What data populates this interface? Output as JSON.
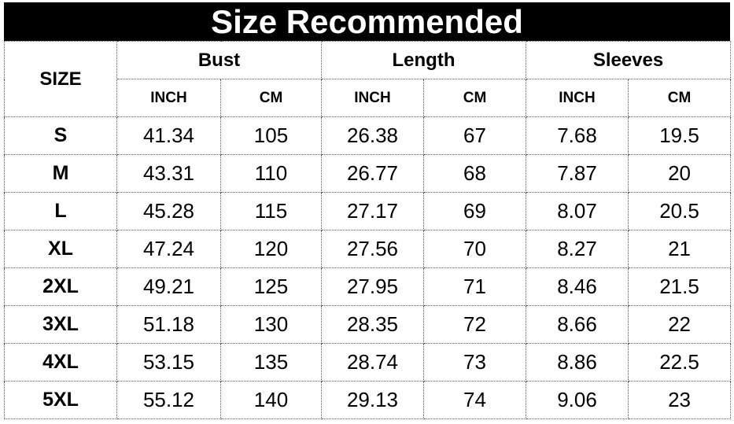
{
  "title": "Size Recommended",
  "table": {
    "size_header": "SIZE",
    "groups": [
      {
        "name": "Bust",
        "units": [
          "INCH",
          "CM"
        ]
      },
      {
        "name": "Length",
        "units": [
          "INCH",
          "CM"
        ]
      },
      {
        "name": "Sleeves",
        "units": [
          "INCH",
          "CM"
        ]
      }
    ],
    "rows": [
      [
        "S",
        "41.34",
        "105",
        "26.38",
        "67",
        "7.68",
        "19.5"
      ],
      [
        "M",
        "43.31",
        "110",
        "26.77",
        "68",
        "7.87",
        "20"
      ],
      [
        "L",
        "45.28",
        "115",
        "27.17",
        "69",
        "8.07",
        "20.5"
      ],
      [
        "XL",
        "47.24",
        "120",
        "27.56",
        "70",
        "8.27",
        "21"
      ],
      [
        "2XL",
        "49.21",
        "125",
        "27.95",
        "71",
        "8.46",
        "21.5"
      ],
      [
        "3XL",
        "51.18",
        "130",
        "28.35",
        "72",
        "8.66",
        "22"
      ],
      [
        "4XL",
        "53.15",
        "135",
        "28.74",
        "73",
        "8.86",
        "22.5"
      ],
      [
        "5XL",
        "55.12",
        "140",
        "29.13",
        "74",
        "9.06",
        "23"
      ]
    ]
  }
}
